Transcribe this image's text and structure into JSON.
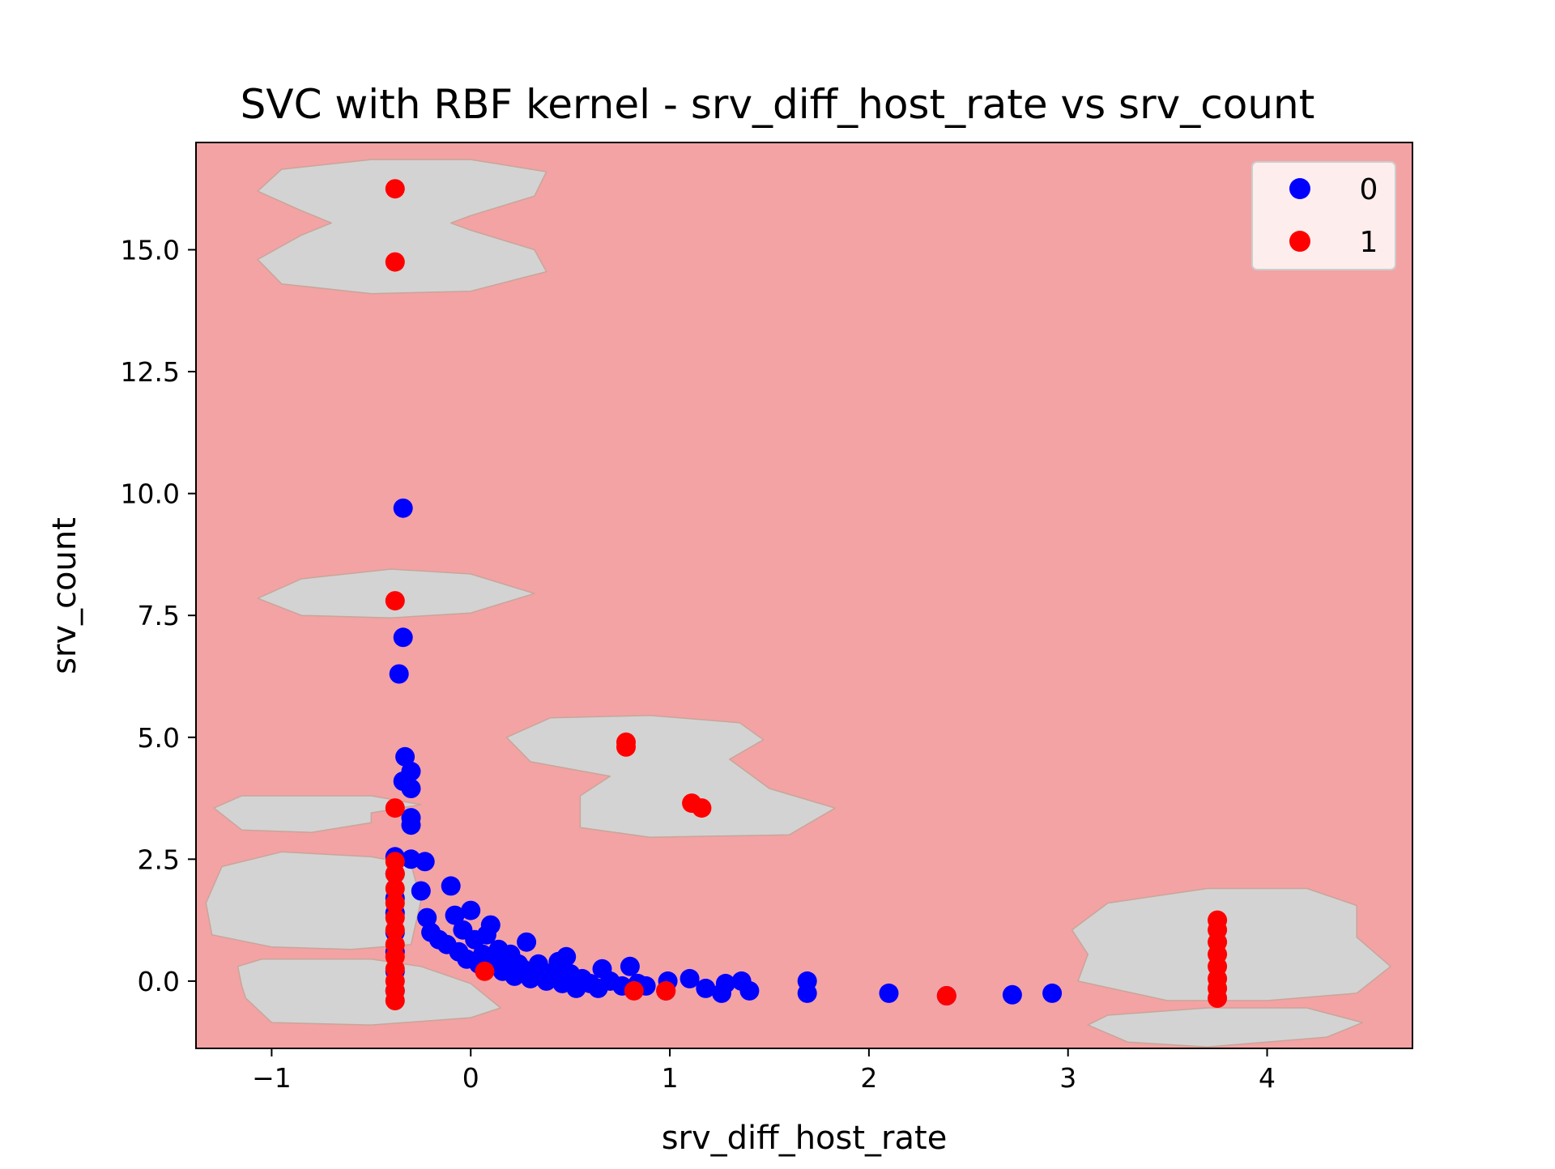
{
  "chart_data": {
    "type": "scatter",
    "title": "SVC with RBF kernel - srv_diff_host_rate vs srv_count",
    "xlabel": "srv_diff_host_rate",
    "ylabel": "srv_count",
    "xlim": [
      -1.38,
      4.73
    ],
    "ylim": [
      -1.38,
      17.2
    ],
    "x_ticks": [
      {
        "value": -1,
        "label": "−1"
      },
      {
        "value": 0,
        "label": "0"
      },
      {
        "value": 1,
        "label": "1"
      },
      {
        "value": 2,
        "label": "2"
      },
      {
        "value": 3,
        "label": "3"
      },
      {
        "value": 4,
        "label": "4"
      }
    ],
    "y_ticks": [
      {
        "value": 0,
        "label": "0.0"
      },
      {
        "value": 2.5,
        "label": "2.5"
      },
      {
        "value": 5,
        "label": "5.0"
      },
      {
        "value": 7.5,
        "label": "7.5"
      },
      {
        "value": 10,
        "label": "10.0"
      },
      {
        "value": 12.5,
        "label": "12.5"
      },
      {
        "value": 15,
        "label": "15.0"
      }
    ],
    "grid": false,
    "legend_position": "top-right",
    "background_color": "#f3a3a4",
    "region_color": "#d3d3d3",
    "decision_regions": [
      {
        "class": "0",
        "outline": [
          [
            -1.07,
            16.2
          ],
          [
            -0.95,
            16.65
          ],
          [
            -0.5,
            16.85
          ],
          [
            0,
            16.85
          ],
          [
            0.38,
            16.6
          ],
          [
            0.32,
            16.1
          ],
          [
            0,
            15.7
          ],
          [
            -0.1,
            15.55
          ],
          [
            0,
            15.4
          ],
          [
            0.32,
            15.0
          ],
          [
            0.38,
            14.55
          ],
          [
            0,
            14.15
          ],
          [
            -0.5,
            14.1
          ],
          [
            -0.95,
            14.3
          ],
          [
            -1.07,
            14.8
          ],
          [
            -0.85,
            15.3
          ],
          [
            -0.7,
            15.55
          ],
          [
            -0.85,
            15.8
          ]
        ]
      },
      {
        "class": "0",
        "outline": [
          [
            -1.07,
            7.85
          ],
          [
            -0.85,
            8.25
          ],
          [
            -0.4,
            8.45
          ],
          [
            0,
            8.35
          ],
          [
            0.32,
            7.95
          ],
          [
            0,
            7.55
          ],
          [
            -0.4,
            7.45
          ],
          [
            -0.85,
            7.5
          ]
        ]
      },
      {
        "class": "0",
        "outline": [
          [
            0.18,
            5.0
          ],
          [
            0.4,
            5.4
          ],
          [
            0.9,
            5.45
          ],
          [
            1.35,
            5.3
          ],
          [
            1.47,
            4.95
          ],
          [
            1.3,
            4.55
          ],
          [
            1.5,
            3.95
          ],
          [
            1.83,
            3.55
          ],
          [
            1.6,
            3.0
          ],
          [
            0.9,
            2.95
          ],
          [
            0.55,
            3.15
          ],
          [
            0.55,
            3.8
          ],
          [
            0.7,
            4.2
          ],
          [
            0.3,
            4.5
          ]
        ]
      },
      {
        "class": "0",
        "outline": [
          [
            -1.29,
            3.55
          ],
          [
            -1.15,
            3.8
          ],
          [
            -0.5,
            3.8
          ],
          [
            -0.25,
            3.62
          ],
          [
            -0.5,
            3.45
          ],
          [
            -0.5,
            3.25
          ],
          [
            -0.8,
            3.05
          ],
          [
            -1.15,
            3.1
          ]
        ]
      },
      {
        "class": "0",
        "outline": [
          [
            -1.33,
            1.6
          ],
          [
            -1.25,
            2.35
          ],
          [
            -0.95,
            2.65
          ],
          [
            -0.5,
            2.55
          ],
          [
            -0.3,
            2.4
          ],
          [
            -0.25,
            1.65
          ],
          [
            -0.3,
            0.75
          ],
          [
            -0.6,
            0.65
          ],
          [
            -1.0,
            0.7
          ],
          [
            -1.3,
            0.95
          ]
        ]
      },
      {
        "class": "0",
        "outline": [
          [
            -1.17,
            0.3
          ],
          [
            -1.05,
            0.45
          ],
          [
            -0.5,
            0.45
          ],
          [
            -0.25,
            0.3
          ],
          [
            0.0,
            -0.05
          ],
          [
            0.15,
            -0.55
          ],
          [
            0.0,
            -0.75
          ],
          [
            -0.5,
            -0.9
          ],
          [
            -1.0,
            -0.85
          ],
          [
            -1.13,
            -0.35
          ],
          [
            -1.15,
            -0.1
          ]
        ]
      },
      {
        "class": "0",
        "outline": [
          [
            3.02,
            1.05
          ],
          [
            3.2,
            1.6
          ],
          [
            3.7,
            1.9
          ],
          [
            4.2,
            1.9
          ],
          [
            4.45,
            1.55
          ],
          [
            4.45,
            0.9
          ],
          [
            4.62,
            0.3
          ],
          [
            4.45,
            -0.25
          ],
          [
            4.0,
            -0.4
          ],
          [
            3.5,
            -0.4
          ],
          [
            3.05,
            0.0
          ],
          [
            3.1,
            0.55
          ]
        ]
      },
      {
        "class": "0",
        "outline": [
          [
            3.1,
            -0.9
          ],
          [
            3.2,
            -0.7
          ],
          [
            3.7,
            -0.55
          ],
          [
            4.2,
            -0.55
          ],
          [
            4.48,
            -0.85
          ],
          [
            4.3,
            -1.15
          ],
          [
            3.7,
            -1.35
          ],
          [
            3.3,
            -1.25
          ]
        ]
      }
    ],
    "series": [
      {
        "name": "0",
        "color": "#0000ff",
        "points": [
          [
            -0.38,
            1.7
          ],
          [
            -0.38,
            1.4
          ],
          [
            -0.38,
            1.0
          ],
          [
            -0.38,
            0.6
          ],
          [
            -0.38,
            0.2
          ],
          [
            -0.38,
            -0.2
          ],
          [
            -0.38,
            2.55
          ],
          [
            -0.38,
            2.2
          ],
          [
            -0.36,
            6.3
          ],
          [
            -0.34,
            7.05
          ],
          [
            -0.34,
            9.7
          ],
          [
            -0.33,
            4.6
          ],
          [
            -0.34,
            4.1
          ],
          [
            -0.3,
            4.3
          ],
          [
            -0.3,
            3.95
          ],
          [
            -0.3,
            3.35
          ],
          [
            -0.3,
            3.2
          ],
          [
            -0.3,
            2.5
          ],
          [
            -0.23,
            2.45
          ],
          [
            -0.25,
            1.85
          ],
          [
            -0.22,
            1.3
          ],
          [
            -0.2,
            1.0
          ],
          [
            -0.16,
            0.85
          ],
          [
            -0.12,
            0.75
          ],
          [
            -0.1,
            1.95
          ],
          [
            -0.08,
            1.35
          ],
          [
            -0.06,
            0.6
          ],
          [
            -0.04,
            1.05
          ],
          [
            -0.02,
            0.45
          ],
          [
            0.0,
            1.45
          ],
          [
            0.02,
            0.85
          ],
          [
            0.04,
            0.35
          ],
          [
            0.06,
            0.55
          ],
          [
            0.08,
            0.95
          ],
          [
            0.1,
            1.15
          ],
          [
            0.12,
            0.35
          ],
          [
            0.14,
            0.65
          ],
          [
            0.16,
            0.2
          ],
          [
            0.18,
            0.45
          ],
          [
            0.2,
            0.55
          ],
          [
            0.22,
            0.1
          ],
          [
            0.24,
            0.35
          ],
          [
            0.26,
            0.25
          ],
          [
            0.28,
            0.8
          ],
          [
            0.3,
            0.05
          ],
          [
            0.32,
            0.15
          ],
          [
            0.34,
            0.35
          ],
          [
            0.38,
            0.0
          ],
          [
            0.42,
            0.2
          ],
          [
            0.44,
            0.4
          ],
          [
            0.46,
            -0.05
          ],
          [
            0.48,
            0.5
          ],
          [
            0.5,
            0.15
          ],
          [
            0.53,
            -0.15
          ],
          [
            0.56,
            0.05
          ],
          [
            0.6,
            -0.05
          ],
          [
            0.64,
            -0.15
          ],
          [
            0.66,
            0.25
          ],
          [
            0.7,
            0.0
          ],
          [
            0.76,
            -0.1
          ],
          [
            0.8,
            0.3
          ],
          [
            0.84,
            -0.05
          ],
          [
            0.88,
            -0.1
          ],
          [
            0.98,
            -0.2
          ],
          [
            0.99,
            0.0
          ],
          [
            1.1,
            0.05
          ],
          [
            1.18,
            -0.15
          ],
          [
            1.26,
            -0.25
          ],
          [
            1.28,
            -0.05
          ],
          [
            1.36,
            0.0
          ],
          [
            1.4,
            -0.2
          ],
          [
            1.69,
            0.0
          ],
          [
            1.69,
            -0.25
          ],
          [
            2.1,
            -0.25
          ],
          [
            2.39,
            -0.3
          ],
          [
            2.72,
            -0.28
          ],
          [
            2.92,
            -0.25
          ]
        ]
      },
      {
        "name": "1",
        "color": "#ff0000",
        "points": [
          [
            -0.38,
            16.25
          ],
          [
            -0.38,
            14.75
          ],
          [
            -0.38,
            7.8
          ],
          [
            -0.38,
            3.55
          ],
          [
            -0.38,
            2.45
          ],
          [
            -0.38,
            2.2
          ],
          [
            -0.38,
            1.9
          ],
          [
            -0.38,
            1.6
          ],
          [
            -0.38,
            1.3
          ],
          [
            -0.38,
            1.05
          ],
          [
            -0.38,
            0.75
          ],
          [
            -0.38,
            0.5
          ],
          [
            -0.38,
            0.25
          ],
          [
            -0.38,
            0.0
          ],
          [
            -0.38,
            -0.2
          ],
          [
            -0.38,
            -0.4
          ],
          [
            0.07,
            0.2
          ],
          [
            0.78,
            4.9
          ],
          [
            0.78,
            4.8
          ],
          [
            1.11,
            3.65
          ],
          [
            1.16,
            3.55
          ],
          [
            0.82,
            -0.2
          ],
          [
            0.98,
            -0.2
          ],
          [
            2.39,
            -0.3
          ],
          [
            3.75,
            1.25
          ],
          [
            3.75,
            1.05
          ],
          [
            3.75,
            0.8
          ],
          [
            3.75,
            0.55
          ],
          [
            3.75,
            0.3
          ],
          [
            3.75,
            0.05
          ],
          [
            3.75,
            -0.15
          ],
          [
            3.75,
            -0.35
          ]
        ]
      }
    ]
  }
}
